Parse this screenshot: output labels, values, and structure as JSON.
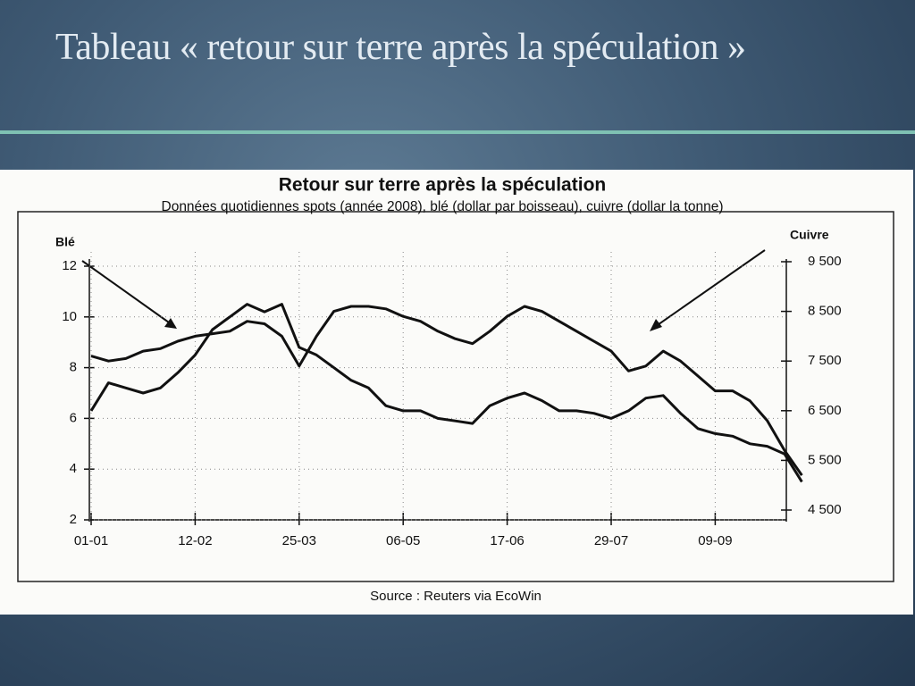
{
  "slide_title": "Tableau « retour sur terre après la spéculation »",
  "chart_data": {
    "type": "line",
    "title": "Retour sur terre après la spéculation",
    "subtitle": "Données quotidiennes spots (année 2008), blé (dollar par boisseau), cuivre (dollar la tonne)",
    "source": "Source : Reuters via EcoWin",
    "annotations": [
      "Blé",
      "Cuivre"
    ],
    "categories": [
      "01-01",
      null,
      null,
      null,
      null,
      null,
      "12-02",
      null,
      null,
      null,
      null,
      null,
      "25-03",
      null,
      null,
      null,
      null,
      null,
      "06-05",
      null,
      null,
      null,
      null,
      null,
      "17-06",
      null,
      null,
      null,
      null,
      null,
      "29-07",
      null,
      null,
      null,
      null,
      null,
      "09-09",
      null,
      null,
      null,
      null,
      null
    ],
    "series": [
      {
        "name": "Blé",
        "color": "#111111",
        "values": [
          6.3,
          7.4,
          7.2,
          7.0,
          7.2,
          7.8,
          8.5,
          9.5,
          10.0,
          10.5,
          10.2,
          10.5,
          8.8,
          8.5,
          8.0,
          7.5,
          7.2,
          6.5,
          6.3,
          6.3,
          6.0,
          5.9,
          5.8,
          6.5,
          6.8,
          7.0,
          6.7,
          6.3,
          6.3,
          6.2,
          6.0,
          6.3,
          6.8,
          6.9,
          6.2,
          5.6,
          5.4,
          5.3,
          5.0,
          4.9,
          4.6,
          3.5
        ]
      },
      {
        "name": "Cuivre",
        "color": "#111111",
        "axis": "y2",
        "values": [
          7600,
          7500,
          7550,
          7700,
          7750,
          7900,
          8000,
          8050,
          8100,
          8300,
          8250,
          8000,
          7400,
          8000,
          8500,
          8600,
          8600,
          8550,
          8400,
          8300,
          8100,
          7950,
          7850,
          8100,
          8400,
          8600,
          8500,
          8300,
          8100,
          7900,
          7700,
          7300,
          7400,
          7700,
          7500,
          7200,
          6900,
          6900,
          6700,
          6300,
          5700,
          5200
        ]
      }
    ],
    "ylim": [
      2,
      12
    ],
    "yticks": [
      2,
      4,
      6,
      8,
      10,
      12
    ],
    "y2lim": [
      4500,
      9500
    ],
    "y2ticks": [
      {
        "value": 4500,
        "label": "4 500"
      },
      {
        "value": 5500,
        "label": "5 500"
      },
      {
        "value": 6500,
        "label": "6 500"
      },
      {
        "value": 7500,
        "label": "7 500"
      },
      {
        "value": 8500,
        "label": "8 500"
      },
      {
        "value": 9500,
        "label": "9 500"
      }
    ],
    "grid": true
  }
}
